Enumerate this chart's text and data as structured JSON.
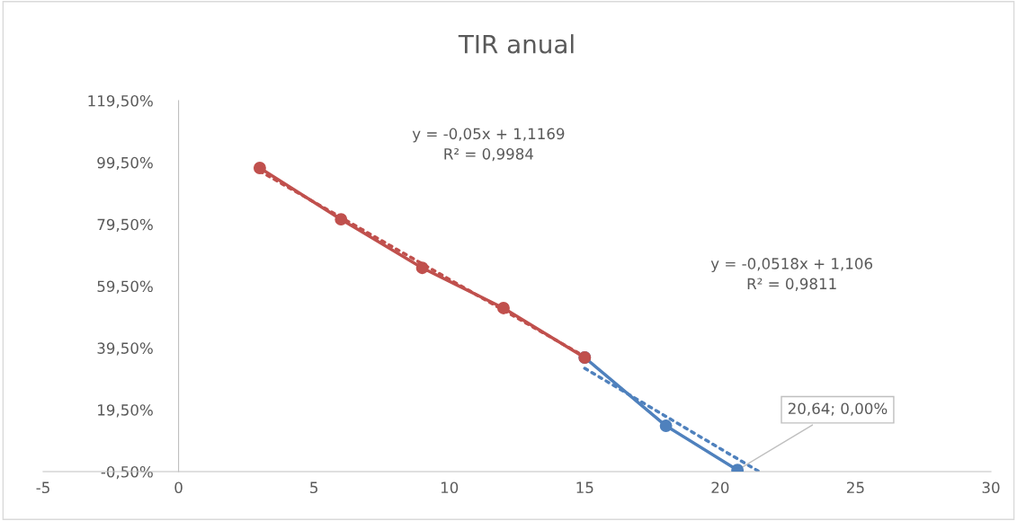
{
  "chart_data": {
    "type": "line",
    "title": "TIR anual",
    "series": [
      {
        "color": "#c0504d",
        "x": [
          3,
          6,
          9,
          12,
          15
        ],
        "values": [
          97.7,
          81.1,
          65.4,
          52.4,
          36.4
        ],
        "marker": "circle",
        "line_style": "solid"
      },
      {
        "color": "#4f81bd",
        "x": [
          15,
          18,
          20.64
        ],
        "values": [
          36.4,
          14.3,
          0
        ],
        "marker": "circle",
        "line_style": "solid"
      },
      {
        "color": "#c0504d",
        "x": [
          3,
          15
        ],
        "values": [
          96.7,
          36.7
        ],
        "marker": "none",
        "line_style": "dotted"
      },
      {
        "color": "#4f81bd",
        "x": [
          15,
          21.4
        ],
        "values": [
          32.9,
          -0.3
        ],
        "marker": "none",
        "line_style": "dotted"
      }
    ],
    "xlim": [
      -5,
      30
    ],
    "xticks": [
      -5,
      0,
      5,
      10,
      15,
      20,
      25,
      30
    ],
    "ylim": [
      -0.5,
      119.5
    ],
    "yticks": [
      {
        "value": -0.5,
        "label": "-0,50%"
      },
      {
        "value": 19.5,
        "label": "19,50%"
      },
      {
        "value": 39.5,
        "label": "39,50%"
      },
      {
        "value": 59.5,
        "label": "59,50%"
      },
      {
        "value": 79.5,
        "label": "79,50%"
      },
      {
        "value": 99.5,
        "label": "99,50%"
      },
      {
        "value": 119.5,
        "label": "119,50%"
      }
    ],
    "grid": false,
    "legend": false,
    "annotations": [
      "y = -0,05x + 1,1169\nR² = 0,9984",
      "y = -0,0518x + 1,106\nR² = 0,9811",
      {
        "text": "20,64; 0,00%",
        "x": 20.64,
        "y": 0
      }
    ]
  }
}
